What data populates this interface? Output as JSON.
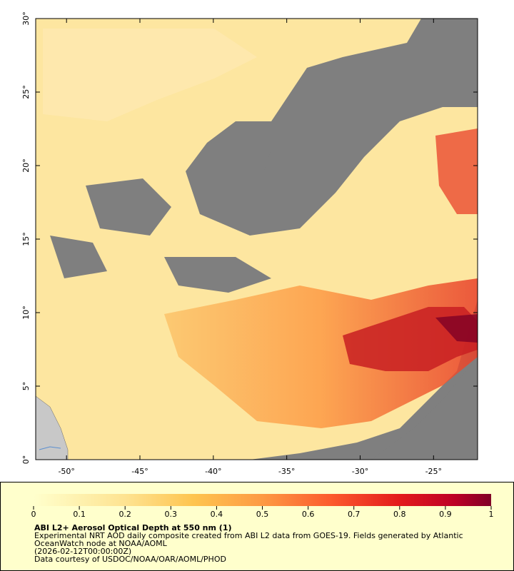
{
  "map": {
    "xlim": [
      -52.1,
      -22
    ],
    "ylim": [
      0,
      30
    ],
    "lat_ticks": [
      {
        "value": 0,
        "label": "0°"
      },
      {
        "value": 5,
        "label": "5°"
      },
      {
        "value": 10,
        "label": "10°"
      },
      {
        "value": 15,
        "label": "15°"
      },
      {
        "value": 20,
        "label": "20°"
      },
      {
        "value": 25,
        "label": "25°"
      },
      {
        "value": 30,
        "label": "30°"
      }
    ],
    "lon_ticks": [
      {
        "value": -50,
        "label": "-50°"
      },
      {
        "value": -45,
        "label": "-45°"
      },
      {
        "value": -40,
        "label": "-40°"
      },
      {
        "value": -35,
        "label": "-35°"
      },
      {
        "value": -30,
        "label": "-30°"
      },
      {
        "value": -25,
        "label": "-25°"
      }
    ]
  },
  "colorbar": {
    "lim": [
      0,
      1
    ],
    "ticks": [
      0,
      0.1,
      0.2,
      0.3,
      0.4,
      0.5,
      0.6,
      0.7,
      0.8,
      0.9,
      1
    ]
  },
  "caption": {
    "title": "ABI L2+ Aerosol Optical Depth at 550 nm (1)",
    "lines": [
      "Experimental NRT AOD daily composite created from ABI L2 data from GOES-19. Fields generated by Atlantic",
      "OceanWatch node at NOAA/AOML",
      "(2026-02-12T00:00:00Z)",
      "Data courtesy of USDOC/NOAA/OAR/AOML/PHOD"
    ]
  }
}
